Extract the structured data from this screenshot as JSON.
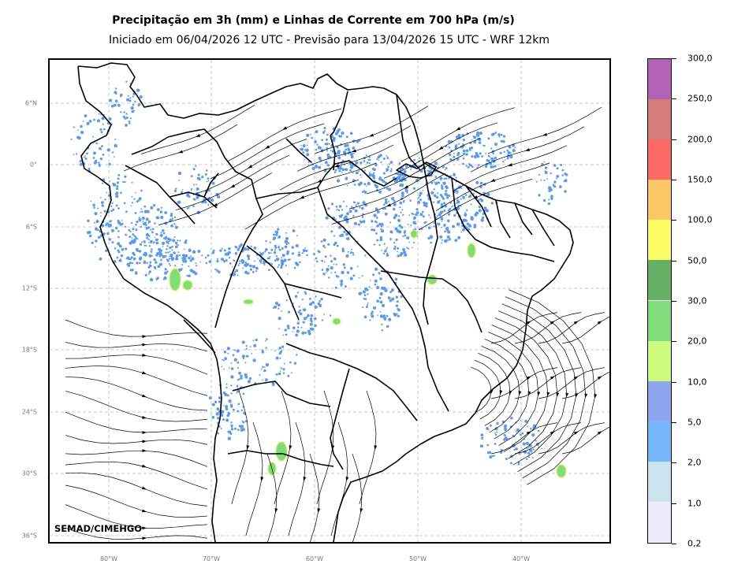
{
  "title": "Precipitação em 3h (mm) e Linhas de Corrente em 700 hPa (m/s)",
  "subtitle": "Iniciado em 06/04/2026 12 UTC - Previsão para 13/04/2026 15 UTC - WRF 12km",
  "watermark": "SEMAD/CIMEHGO",
  "lat_labels": [
    "6°N",
    "0°",
    "6°S",
    "12°S",
    "18°S",
    "24°S",
    "30°S",
    "36°S"
  ],
  "lon_labels": [
    "80°W",
    "70°W",
    "60°W",
    "50°W",
    "40°W"
  ],
  "colorbar": {
    "labels": [
      "0,2",
      "1,0",
      "2,0",
      "5,0",
      "10,0",
      "20,0",
      "30,0",
      "50,0",
      "100,0",
      "150,0",
      "200,0",
      "250,0",
      "300,0"
    ],
    "colors": [
      "#ecebfa",
      "#cbe3ef",
      "#76b6fb",
      "#8ea6ee",
      "#cdfb7b",
      "#80dc7b",
      "#66b066",
      "#fdfd66",
      "#fdc766",
      "#fd6a66",
      "#d47e7a",
      "#b263b8"
    ]
  },
  "colors": {
    "grid": "#b8b8b8",
    "coast": "#000000",
    "streamline": "#000000",
    "precip_light": "#5a9af5",
    "precip_mid": "#7fdc76",
    "precip_heavy": "#d8f062"
  }
}
